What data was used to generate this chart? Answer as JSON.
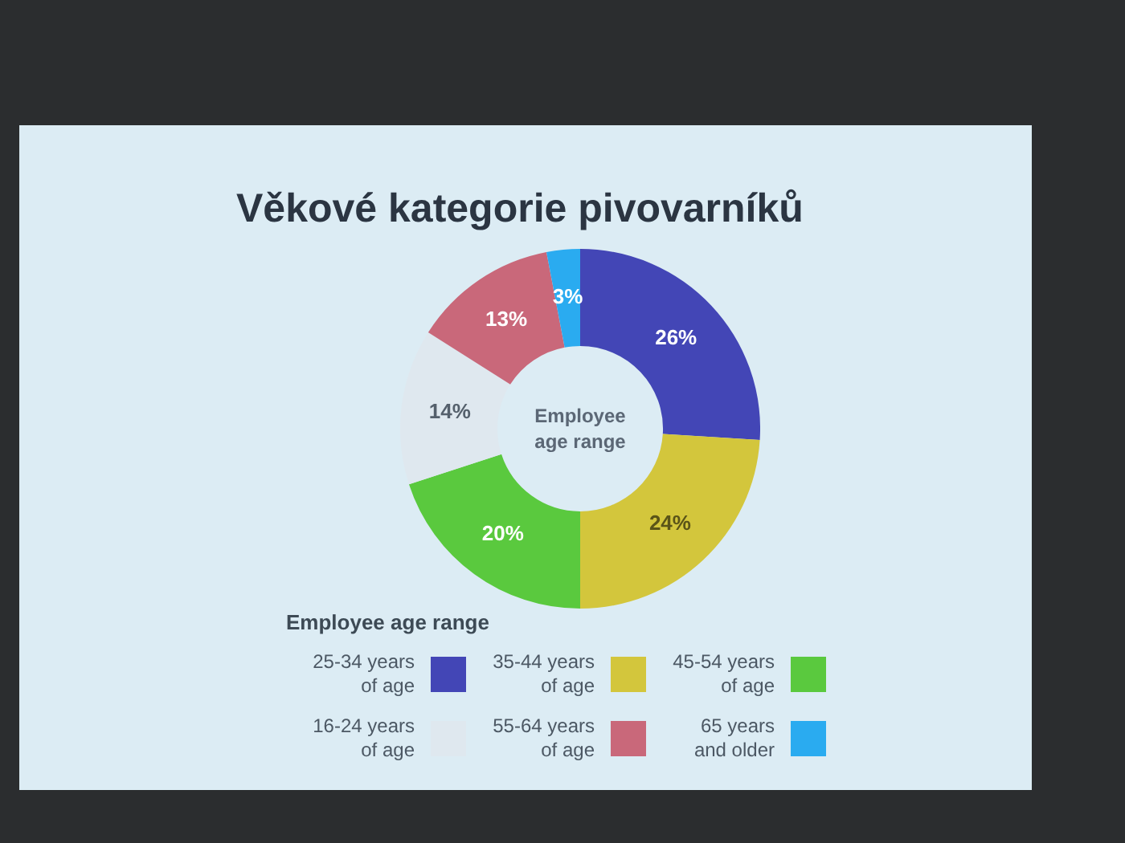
{
  "chart_data": {
    "type": "donut",
    "title": "Věkové kategorie pivovarníků",
    "categories": [
      "25-34 years of age",
      "35-44 years of age",
      "45-54 years of age",
      "16-24 years of age",
      "55-64 years of age",
      "65 years and older"
    ],
    "values": [
      26,
      24,
      20,
      14,
      13,
      3
    ],
    "colors": [
      "#4346b6",
      "#d3c63c",
      "#5ac93e",
      "#dfe8ef",
      "#c9687a",
      "#2aabf0"
    ],
    "value_labels": [
      "26%",
      "24%",
      "20%",
      "14%",
      "13%",
      "3%"
    ],
    "legend": "bottom",
    "legend_title": "Employee age range",
    "annotations": [
      "Employee age range"
    ]
  }
}
